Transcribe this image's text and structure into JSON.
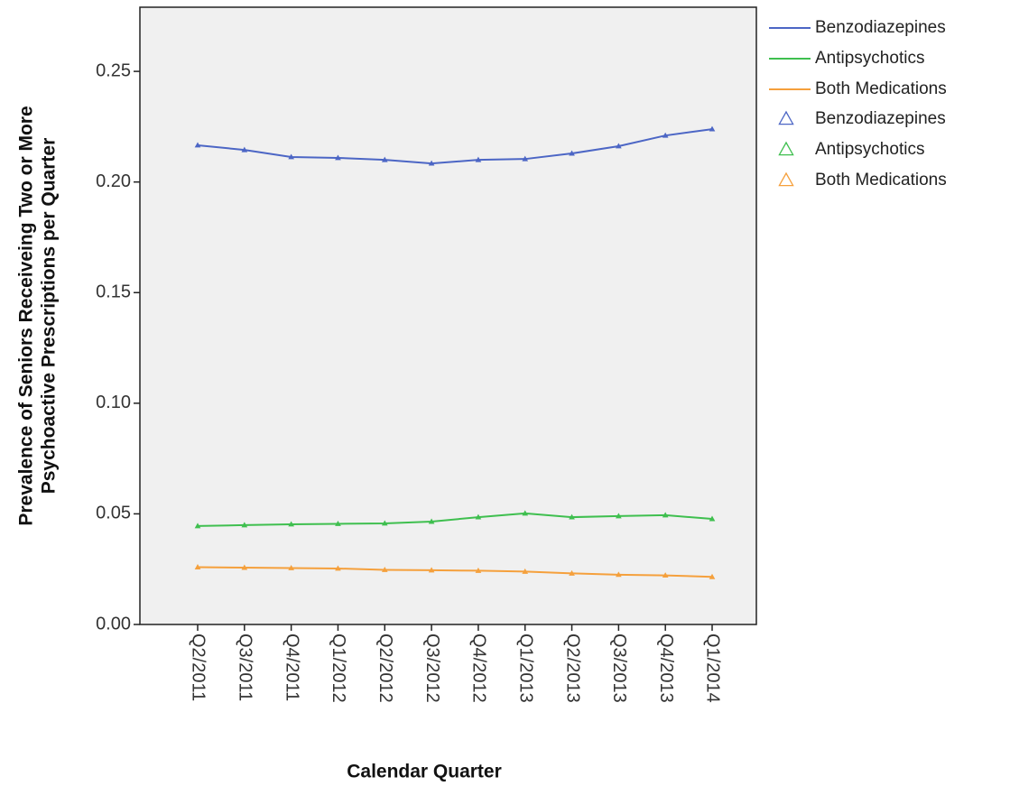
{
  "chart_data": {
    "type": "line",
    "ylabel": [
      "Prevalence of Seniors Receiveing Two or More",
      "Psychoactive Prescriptions  per Quarter"
    ],
    "xlabel": "Calendar Quarter",
    "categories": [
      "Q2/2011",
      "Q3/2011",
      "Q4/2011",
      "Q1/2012",
      "Q2/2012",
      "Q3/2012",
      "Q4/2012",
      "Q1/2013",
      "Q2/2013",
      "Q3/2013",
      "Q4/2013",
      "Q1/2014"
    ],
    "series": [
      {
        "name": "Benzodiazepines",
        "color": "#4c66c5",
        "values": [
          0.2166,
          0.2145,
          0.2113,
          0.2109,
          0.21,
          0.2084,
          0.21,
          0.2104,
          0.2129,
          0.2162,
          0.221,
          0.2239
        ]
      },
      {
        "name": "Antipsychotics",
        "color": "#3fbf4f",
        "values": [
          0.0445,
          0.0449,
          0.0453,
          0.0455,
          0.0457,
          0.0465,
          0.0485,
          0.0502,
          0.0485,
          0.049,
          0.0494,
          0.0477
        ]
      },
      {
        "name": "Both Medications",
        "color": "#f5a03c",
        "values": [
          0.0259,
          0.0257,
          0.0255,
          0.0253,
          0.0247,
          0.0245,
          0.0243,
          0.0239,
          0.0231,
          0.0225,
          0.0222,
          0.0215
        ]
      }
    ],
    "ylim": [
      0,
      0.279
    ],
    "yticks": [
      {
        "value": 0,
        "label": "0.00"
      },
      0.05,
      {
        "value": 0.1,
        "label": "0.10"
      },
      0.15,
      {
        "value": 0.2,
        "label": "0.20"
      },
      0.25
    ],
    "markers": "triangle",
    "grid": false
  }
}
